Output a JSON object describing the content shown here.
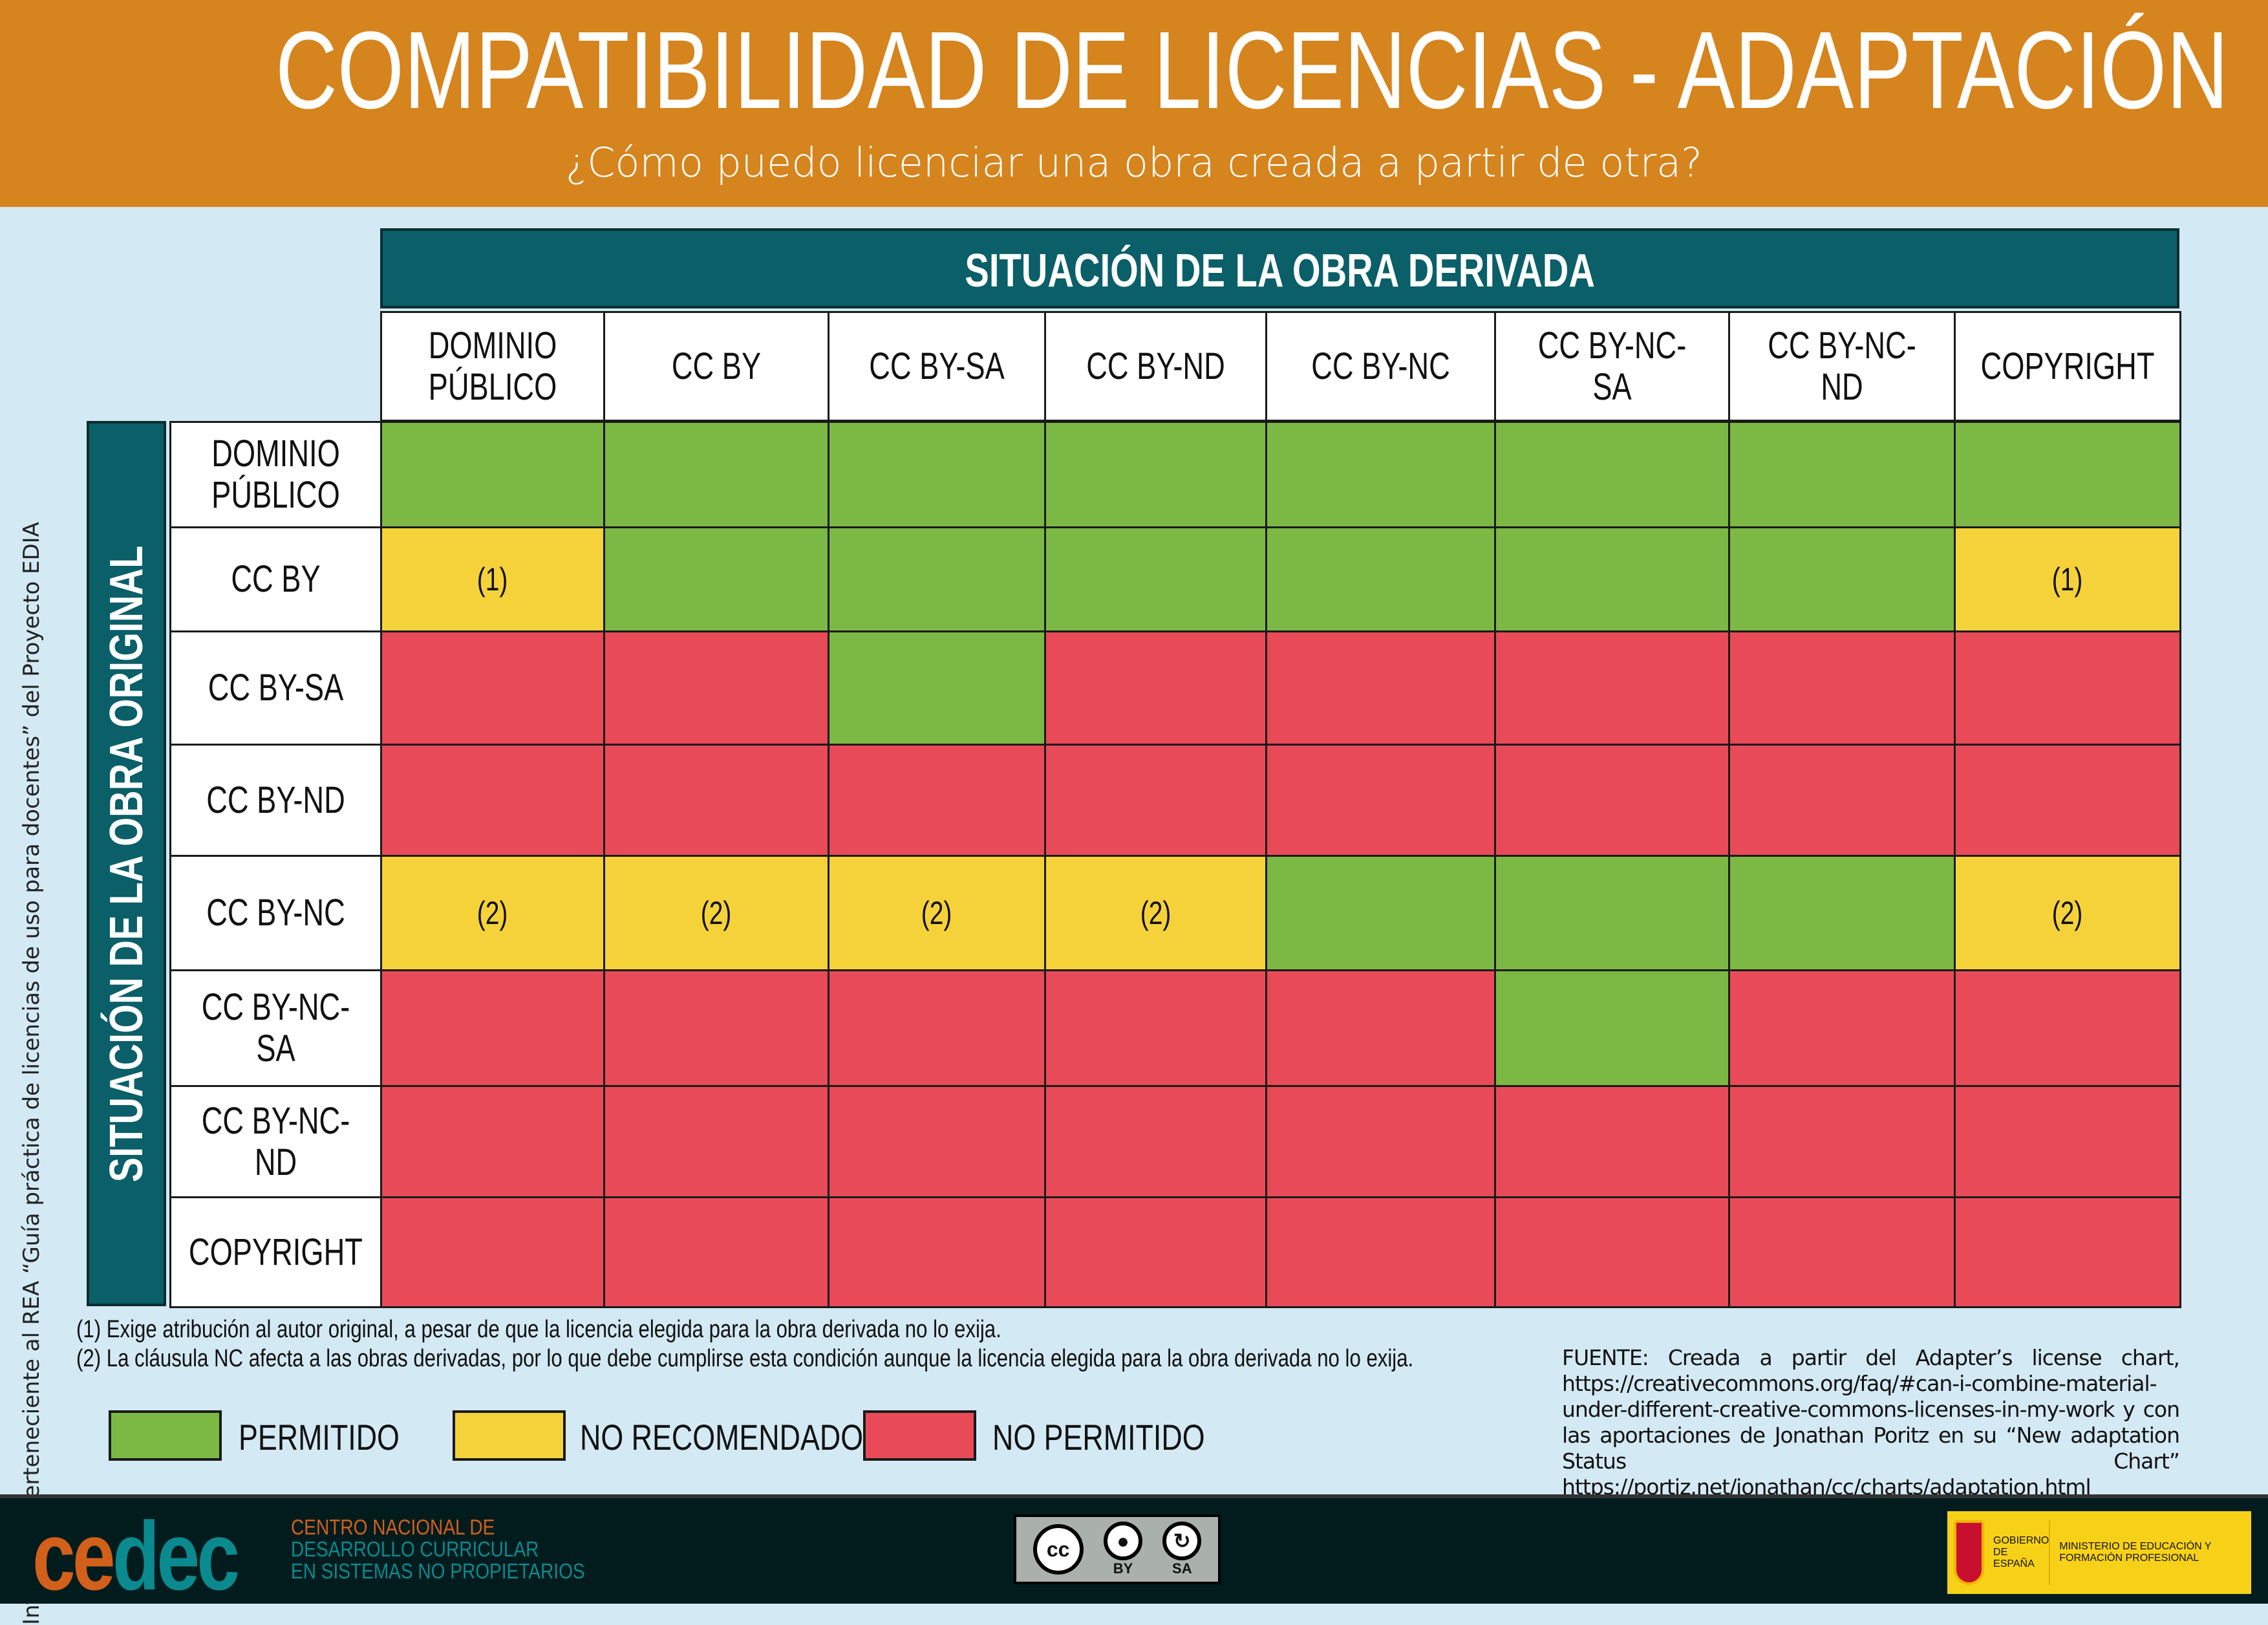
{
  "title": "COMPATIBILIDAD DE LICENCIAS - ADAPTACIÓN",
  "subtitle": "¿Cómo puedo licenciar una obra creada a partir de otra?",
  "column_group": "SITUACIÓN DE LA OBRA DERIVADA",
  "row_group": "SITUACIÓN DE LA OBRA ORIGINAL",
  "columns": [
    "DOMINIO PÚBLICO",
    "CC BY",
    "CC BY-SA",
    "CC BY-ND",
    "CC BY-NC",
    "CC BY-NC-SA",
    "CC BY-NC-ND",
    "COPYRIGHT"
  ],
  "rows": [
    {
      "label": "DOMINIO PÚBLICO",
      "cells": [
        "G",
        "G",
        "G",
        "G",
        "G",
        "G",
        "G",
        "G"
      ],
      "notes": [
        "",
        "",
        "",
        "",
        "",
        "",
        "",
        ""
      ]
    },
    {
      "label": "CC BY",
      "cells": [
        "Y",
        "G",
        "G",
        "G",
        "G",
        "G",
        "G",
        "Y"
      ],
      "notes": [
        "(1)",
        "",
        "",
        "",
        "",
        "",
        "",
        "(1)"
      ]
    },
    {
      "label": "CC BY-SA",
      "cells": [
        "R",
        "R",
        "G",
        "R",
        "R",
        "R",
        "R",
        "R"
      ],
      "notes": [
        "",
        "",
        "",
        "",
        "",
        "",
        "",
        ""
      ]
    },
    {
      "label": "CC BY-ND",
      "cells": [
        "R",
        "R",
        "R",
        "R",
        "R",
        "R",
        "R",
        "R"
      ],
      "notes": [
        "",
        "",
        "",
        "",
        "",
        "",
        "",
        ""
      ]
    },
    {
      "label": "CC BY-NC",
      "cells": [
        "Y",
        "Y",
        "Y",
        "Y",
        "G",
        "G",
        "G",
        "Y"
      ],
      "notes": [
        "(2)",
        "(2)",
        "(2)",
        "(2)",
        "",
        "",
        "",
        "(2)"
      ]
    },
    {
      "label": "CC BY-NC-SA",
      "cells": [
        "R",
        "R",
        "R",
        "R",
        "R",
        "G",
        "R",
        "R"
      ],
      "notes": [
        "",
        "",
        "",
        "",
        "",
        "",
        "",
        ""
      ]
    },
    {
      "label": "CC BY-NC-ND",
      "cells": [
        "R",
        "R",
        "R",
        "R",
        "R",
        "R",
        "R",
        "R"
      ],
      "notes": [
        "",
        "",
        "",
        "",
        "",
        "",
        "",
        ""
      ]
    },
    {
      "label": "COPYRIGHT",
      "cells": [
        "R",
        "R",
        "R",
        "R",
        "R",
        "R",
        "R",
        "R"
      ],
      "notes": [
        "",
        "",
        "",
        "",
        "",
        "",
        "",
        ""
      ]
    }
  ],
  "status_colors": {
    "G": "#7cb944",
    "Y": "#f6d23a",
    "R": "#e84b57"
  },
  "footnotes": [
    "(1) Exige atribución al autor original, a pesar de que la licencia elegida para la obra derivada no lo exija.",
    "(2) La cláusula NC afecta a las obras derivadas, por lo que debe cumplirse esta condición aunque la licencia elegida para la obra derivada no lo exija."
  ],
  "legend": {
    "G": "PERMITIDO",
    "Y": "NO RECOMENDADO",
    "R": "NO PERMITIDO"
  },
  "source": "FUENTE: Creada a partir del Adapter’s license chart, https://creativecommons.org/faq/#can-i-combine-material-under-different-creative-commons-licenses-in-my-work y con las aportaciones de Jonathan Poritz en su “New adaptation Status Chart” https://portiz.net/jonathan/cc/charts/adaptation.html",
  "side_text": "Infografía perteneciente al REA “Guía práctica de licencias de uso para docentes” del Proyecto EDIA",
  "footer": {
    "logo_a": "ce",
    "logo_b": "dec",
    "org_lines": [
      "CENTRO NACIONAL DE",
      "DESARROLLO CURRICULAR",
      "EN SISTEMAS NO PROPIETARIOS"
    ],
    "cc_badge": [
      "cc",
      "BY",
      "SA"
    ],
    "gov": "GOBIERNO DE ESPAÑA",
    "ministry": "MINISTERIO DE EDUCACIÓN Y FORMACIÓN PROFESIONAL"
  }
}
